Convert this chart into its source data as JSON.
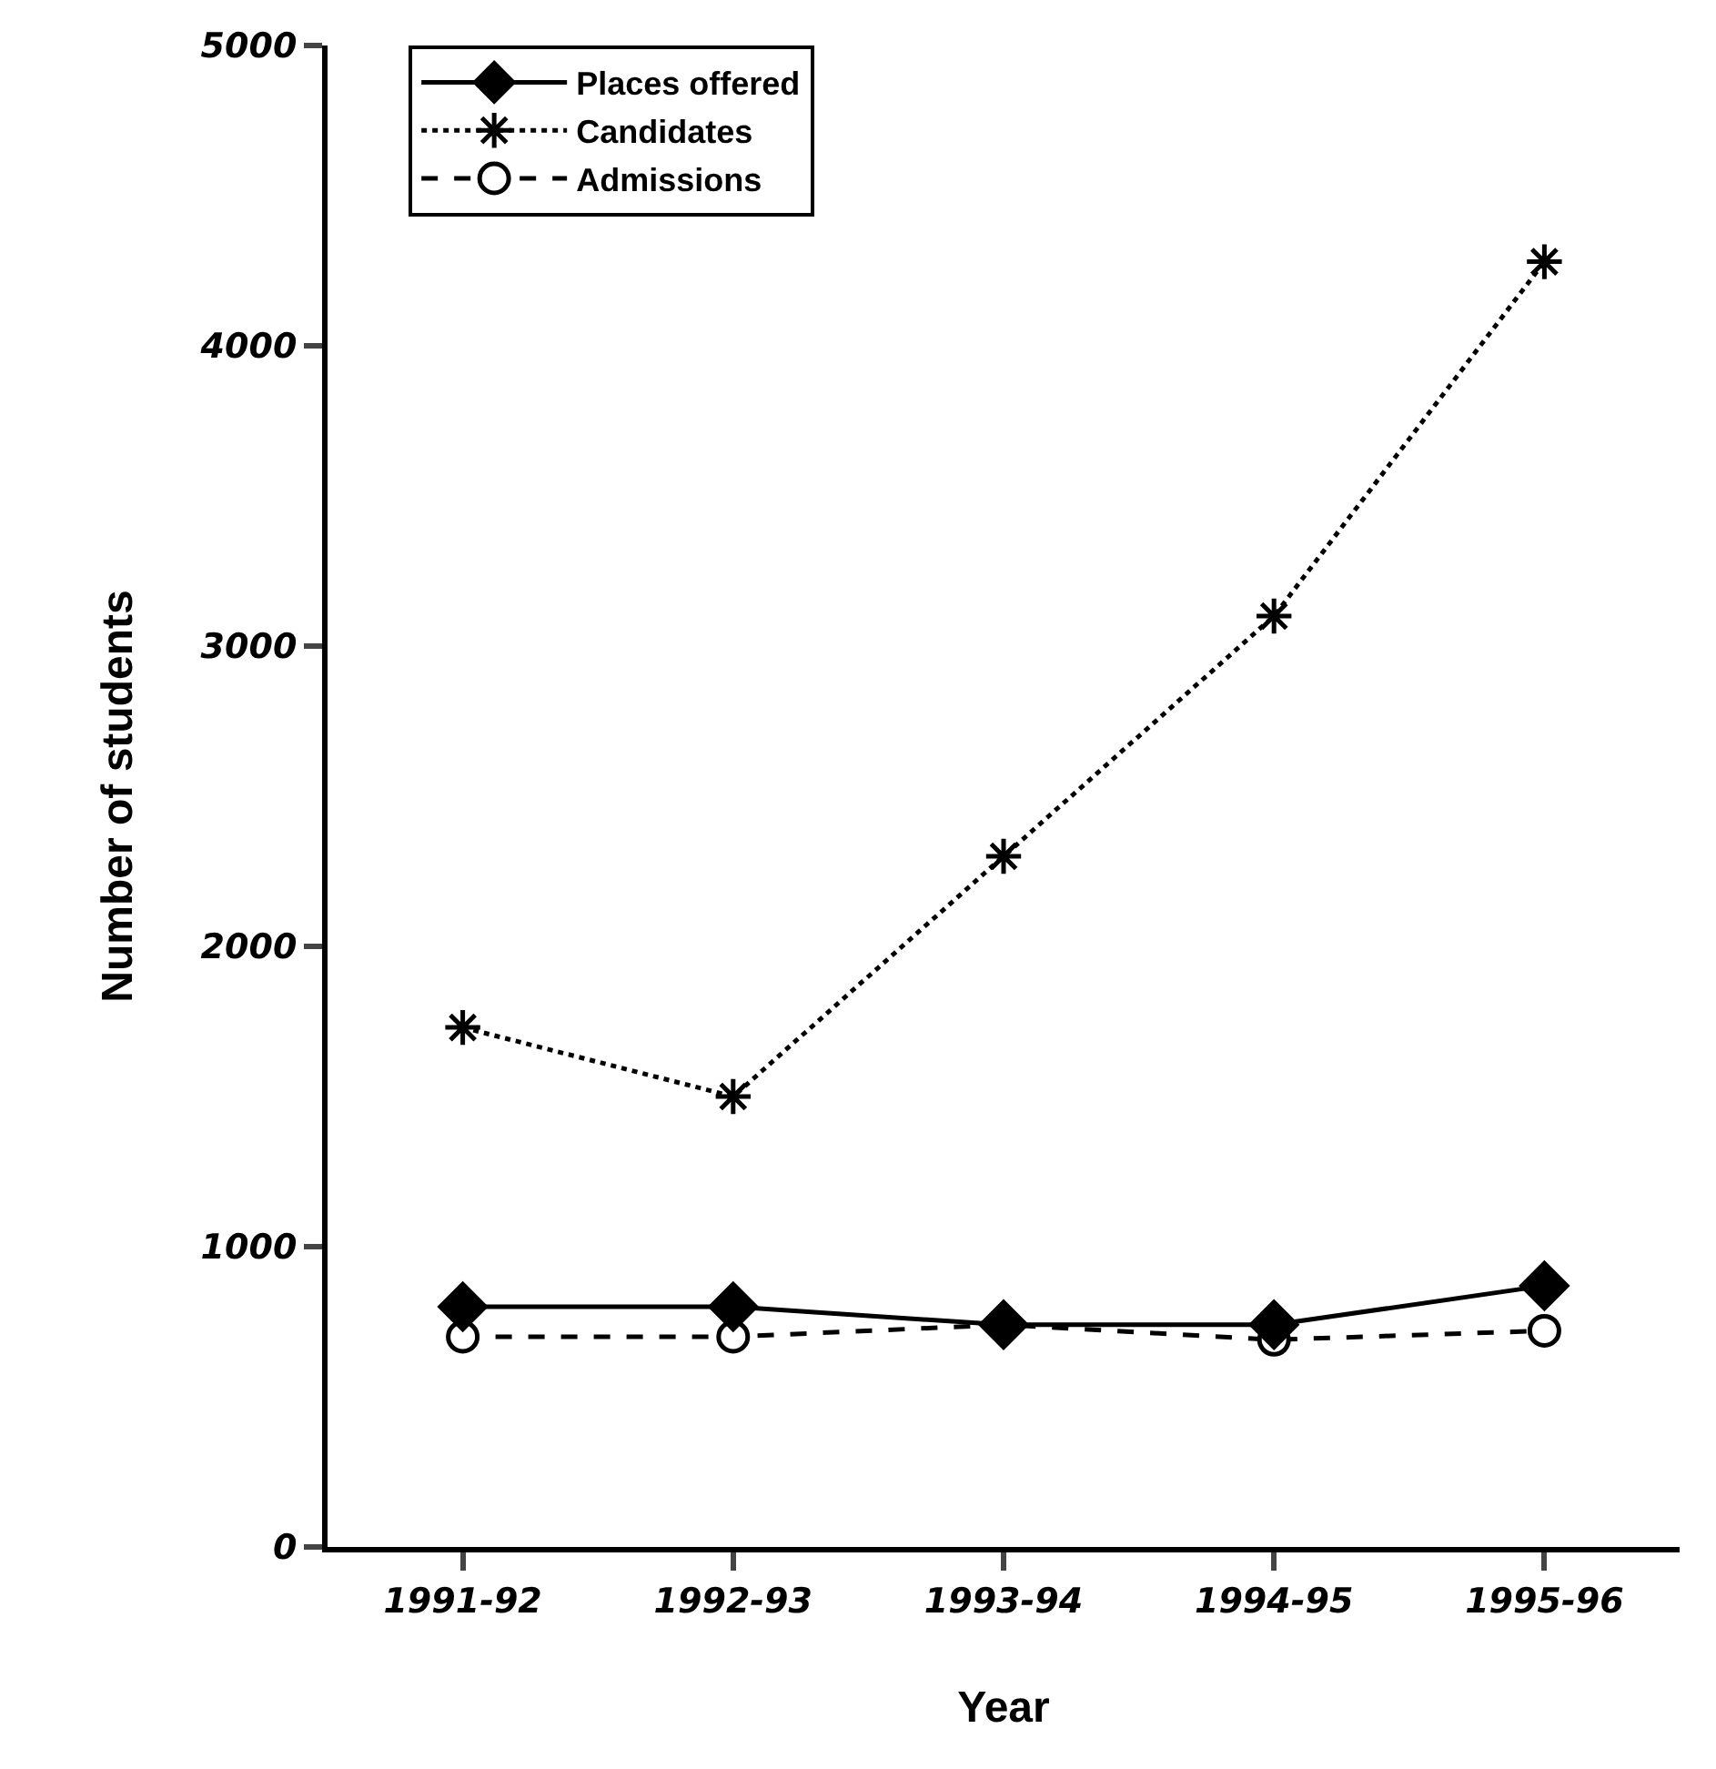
{
  "chart_data": {
    "type": "line",
    "xlabel": "Year",
    "ylabel": "Number of students",
    "categories": [
      "1991-92",
      "1992-93",
      "1993-94",
      "1994-95",
      "1995-96"
    ],
    "series": [
      {
        "name": "Places offered",
        "color": "#000000",
        "values": [
          800,
          800,
          740,
          740,
          870
        ],
        "marker": "diamond",
        "line_style": "solid"
      },
      {
        "name": "Candidates",
        "color": "#000000",
        "values": [
          1730,
          1500,
          2300,
          3100,
          4280
        ],
        "marker": "cross",
        "line_style": "dotted"
      },
      {
        "name": "Admissions",
        "color": "#000000",
        "values": [
          700,
          700,
          740,
          690,
          720
        ],
        "marker": "circle",
        "line_style": "dashed"
      }
    ],
    "ylim": [
      0,
      5000
    ],
    "yticks": [
      0,
      1000,
      2000,
      3000,
      4000,
      5000
    ],
    "grid": false,
    "legend": "top left"
  }
}
